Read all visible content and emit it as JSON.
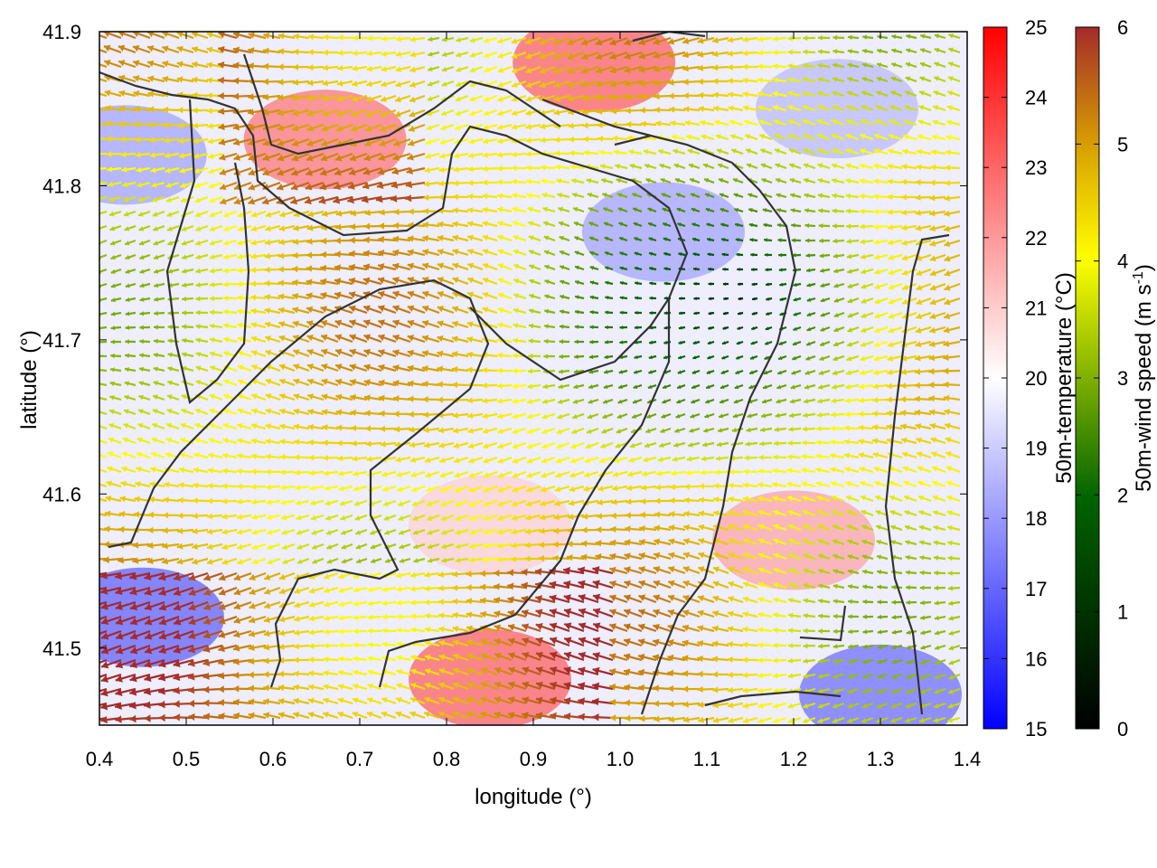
{
  "chart_data": {
    "type": "heatmap",
    "subtype": "vector-field-over-temperature-map",
    "xlabel": "longitude (°)",
    "ylabel": "latitude (°)",
    "xlim": [
      0.4,
      1.4
    ],
    "ylim": [
      41.45,
      41.9
    ],
    "x_ticks": [
      "0.4",
      "0.5",
      "0.6",
      "0.7",
      "0.8",
      "0.9",
      "1.0",
      "1.1",
      "1.2",
      "1.3",
      "1.4"
    ],
    "y_ticks": [
      "41.5",
      "41.6",
      "41.7",
      "41.8",
      "41.9"
    ],
    "grid": false,
    "temperature_colorbar": {
      "label": "50m-temperature (°C)",
      "range": [
        15,
        25
      ],
      "ticks": [
        "15",
        "16",
        "17",
        "18",
        "19",
        "20",
        "21",
        "22",
        "23",
        "24",
        "25"
      ],
      "colors": [
        "#0000ff",
        "#ffffff",
        "#ff0000"
      ]
    },
    "wind_colorbar": {
      "label_prefix": "50m-wind speed (m s",
      "label_exp": "-1",
      "label_suffix": ")",
      "range": [
        0,
        6
      ],
      "ticks": [
        "0",
        "1",
        "2",
        "3",
        "4",
        "5",
        "6"
      ],
      "colors": [
        "#000000",
        "#006400",
        "#7fb000",
        "#ffff00",
        "#d8a000",
        "#a52a2a"
      ]
    },
    "wind_direction": "predominantly westward (easterly flow)",
    "temperature_hotspots": [
      {
        "lon": 0.66,
        "lat": 41.83,
        "temp": 23.0
      },
      {
        "lon": 0.97,
        "lat": 41.88,
        "temp": 23.5
      },
      {
        "lon": 0.85,
        "lat": 41.48,
        "temp": 23.5
      },
      {
        "lon": 1.2,
        "lat": 41.57,
        "temp": 22.0
      },
      {
        "lon": 0.85,
        "lat": 41.58,
        "temp": 21.0
      }
    ],
    "temperature_coldspots": [
      {
        "lon": 0.45,
        "lat": 41.52,
        "temp": 16.5
      },
      {
        "lon": 1.3,
        "lat": 41.47,
        "temp": 16.8
      },
      {
        "lon": 1.05,
        "lat": 41.77,
        "temp": 18.0
      },
      {
        "lon": 0.43,
        "lat": 41.82,
        "temp": 18.0
      },
      {
        "lon": 1.25,
        "lat": 41.85,
        "temp": 18.5
      }
    ]
  }
}
